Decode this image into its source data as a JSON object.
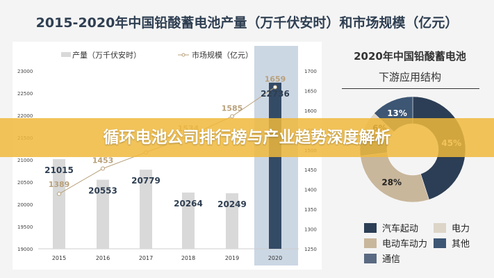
{
  "title": "2015-2020年中国铅酸蓄电池产量（万千伏安时）和市场规模（亿元）",
  "banner": "循环电池公司排行榜与产业趋势深度解析",
  "chart_data": [
    {
      "type": "bar+line",
      "categories": [
        "2015",
        "2016",
        "2017",
        "2018",
        "2019",
        "2020"
      ],
      "series": [
        {
          "name": "产量（万千伏安时）",
          "type": "bar",
          "axis": "left",
          "values": [
            21015,
            20553,
            20779,
            20264,
            20249,
            22736
          ],
          "labels": [
            "21015",
            "20553",
            "20779",
            "20264",
            "20249",
            "22736"
          ]
        },
        {
          "name": "市场规模（亿元）",
          "type": "line",
          "axis": "right",
          "values": [
            1389,
            1453,
            1494,
            1534,
            1585,
            1659
          ],
          "labels": [
            "1389",
            "1453",
            "",
            "1534",
            "1585",
            "1659"
          ]
        }
      ],
      "ylim_left": [
        19000,
        23000
      ],
      "yticks_left": [
        "19000",
        "19500",
        "20000",
        "20500",
        "21000",
        "21500",
        "22000",
        "22500",
        "23000"
      ],
      "ylim_right": [
        1250,
        1700
      ],
      "yticks_right": [
        "1250",
        "1300",
        "1350",
        "1400",
        "1450",
        "1500",
        "1550",
        "1600",
        "1650",
        "1700"
      ],
      "highlight": "2020",
      "legend": "top",
      "colors": {
        "bar": "#d9d9d9",
        "bar_highlight": "#344b66",
        "line": "#b8a07a",
        "band": "#ccd7e4"
      }
    },
    {
      "type": "pie",
      "title": [
        "2020年中国铅酸蓄电池",
        "下游应用结构"
      ],
      "slices": [
        {
          "name": "汽车起动",
          "value": 45,
          "label": "45%",
          "color": "#2c3e55"
        },
        {
          "name": "电动车动力",
          "value": 28,
          "label": "28%",
          "color": "#c9b79c"
        },
        {
          "name": "通信",
          "value": 8,
          "label": "",
          "color": "#5a6a82"
        },
        {
          "name": "电力",
          "value": 6,
          "label": "6%",
          "color": "#ddd5c8"
        },
        {
          "name": "其他",
          "value": 13,
          "label": "13%",
          "color": "#3d5674"
        }
      ],
      "legend_order": [
        "汽车起动",
        "电力",
        "电动车动力",
        "其他",
        "通信"
      ],
      "legend": "bottom"
    }
  ]
}
